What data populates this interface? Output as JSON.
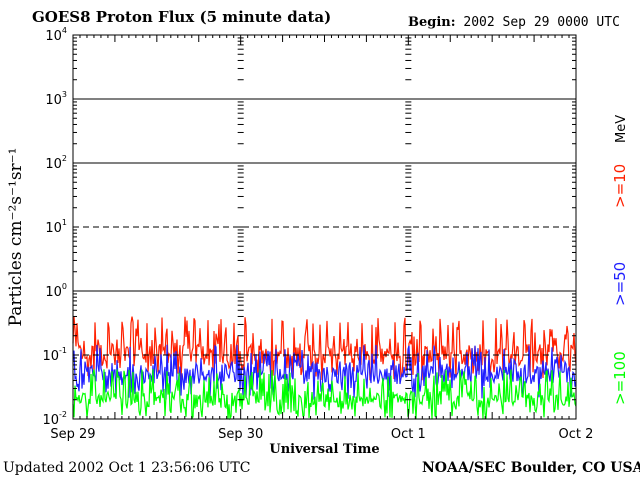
{
  "header": {
    "title": "GOES8 Proton Flux (5 minute data)",
    "begin_label": "Begin:",
    "begin_value": "2002 Sep 29 0000 UTC"
  },
  "footer": {
    "updated": "Updated 2002 Oct  1 23:56:06 UTC",
    "credit": "NOAA/SEC Boulder, CO USA"
  },
  "chart_data": {
    "type": "line",
    "title": "GOES8 Proton Flux (5 minute data)",
    "xlabel": "Universal Time",
    "ylabel": "Particles cm⁻²s⁻¹sr⁻¹",
    "yscale": "log",
    "ylim": [
      0.01,
      10000
    ],
    "xlim": [
      0,
      3
    ],
    "x_tick_labels": [
      "Sep 29",
      "Sep 30",
      "Oct 1",
      "Oct 2"
    ],
    "y_tick_labels": [
      {
        "base": "10",
        "exp": "-2"
      },
      {
        "base": "10",
        "exp": "-1"
      },
      {
        "base": "10",
        "exp": "0"
      },
      {
        "base": "10",
        "exp": "1"
      },
      {
        "base": "10",
        "exp": "2"
      },
      {
        "base": "10",
        "exp": "3"
      },
      {
        "base": "10",
        "exp": "4"
      }
    ],
    "unit_label": "MeV",
    "grid": true,
    "series": [
      {
        "name": ">=10",
        "color": "#ff2000",
        "typical": 0.1,
        "range": [
          0.04,
          0.4
        ]
      },
      {
        "name": ">=50",
        "color": "#2020ff",
        "typical": 0.05,
        "range": [
          0.02,
          0.15
        ]
      },
      {
        "name": ">=100",
        "color": "#00ff00",
        "typical": 0.02,
        "range": [
          0.01,
          0.06
        ]
      }
    ]
  }
}
